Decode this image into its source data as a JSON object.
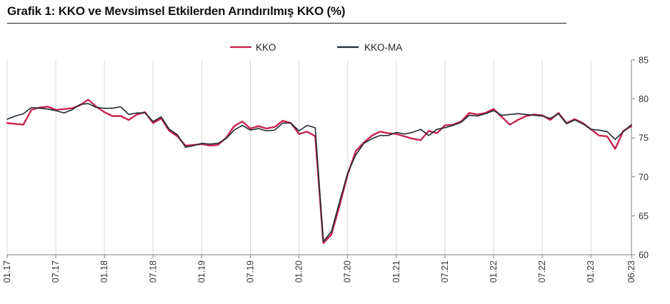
{
  "title": "Grafik 1: KKO ve Mevsimsel Etkilerden Arındırılmış KKO (%)",
  "chart_data": {
    "type": "line",
    "title": "Grafik 1: KKO ve Mevsimsel Etkilerden Arındırılmış KKO (%)",
    "xlabel": "",
    "ylabel": "",
    "ylim": [
      60,
      85
    ],
    "yticks": [
      60,
      65,
      70,
      75,
      80,
      85
    ],
    "x_tick_labels": [
      "01.17",
      "07.17",
      "01.18",
      "07.18",
      "01.19",
      "07.19",
      "01.20",
      "07.20",
      "01.21",
      "07.21",
      "01.22",
      "07.22",
      "01.23",
      "06.23"
    ],
    "x": [
      "01.17",
      "02.17",
      "03.17",
      "04.17",
      "05.17",
      "06.17",
      "07.17",
      "08.17",
      "09.17",
      "10.17",
      "11.17",
      "12.17",
      "01.18",
      "02.18",
      "03.18",
      "04.18",
      "05.18",
      "06.18",
      "07.18",
      "08.18",
      "09.18",
      "10.18",
      "11.18",
      "12.18",
      "01.19",
      "02.19",
      "03.19",
      "04.19",
      "05.19",
      "06.19",
      "07.19",
      "08.19",
      "09.19",
      "10.19",
      "11.19",
      "12.19",
      "01.20",
      "02.20",
      "03.20",
      "04.20",
      "05.20",
      "06.20",
      "07.20",
      "08.20",
      "09.20",
      "10.20",
      "11.20",
      "12.20",
      "01.21",
      "02.21",
      "03.21",
      "04.21",
      "05.21",
      "06.21",
      "07.21",
      "08.21",
      "09.21",
      "10.21",
      "11.21",
      "12.21",
      "01.22",
      "02.22",
      "03.22",
      "04.22",
      "05.22",
      "06.22",
      "07.22",
      "08.22",
      "09.22",
      "10.22",
      "11.22",
      "12.22",
      "01.23",
      "02.23",
      "03.23",
      "04.23",
      "05.23",
      "06.23"
    ],
    "grid": "vertical",
    "legend_position": "top-center",
    "series": [
      {
        "name": "KKO",
        "color": "#c8234f",
        "values": [
          76.9,
          76.8,
          76.7,
          78.6,
          78.9,
          79.0,
          78.6,
          78.7,
          78.8,
          79.2,
          79.9,
          79.0,
          78.3,
          77.8,
          77.8,
          77.3,
          78.0,
          78.3,
          76.9,
          77.5,
          75.9,
          75.2,
          74.0,
          74.1,
          74.2,
          74.0,
          74.1,
          75.0,
          76.5,
          77.1,
          76.2,
          76.5,
          76.2,
          76.4,
          77.2,
          76.9,
          75.5,
          75.8,
          75.2,
          61.5,
          62.6,
          66.3,
          70.3,
          73.3,
          74.4,
          75.3,
          75.8,
          75.6,
          75.5,
          75.2,
          74.9,
          74.7,
          75.9,
          75.6,
          76.6,
          76.7,
          77.1,
          78.2,
          78.0,
          78.2,
          78.7,
          77.7,
          76.7,
          77.3,
          77.8,
          78.0,
          77.9,
          77.3,
          78.2,
          76.9,
          77.4,
          76.9,
          76.1,
          75.3,
          75.2,
          73.6,
          75.9,
          76.5
        ]
      },
      {
        "name": "KKO-MA",
        "color": "#1f2a33",
        "values": [
          77.4,
          77.8,
          78.1,
          78.9,
          78.8,
          78.7,
          78.5,
          78.2,
          78.6,
          79.3,
          79.4,
          78.9,
          78.8,
          78.8,
          79.0,
          78.0,
          78.2,
          78.2,
          77.1,
          77.7,
          76.1,
          75.4,
          73.8,
          74.0,
          74.3,
          74.2,
          74.3,
          74.9,
          76.0,
          76.6,
          76.0,
          76.2,
          75.9,
          76.0,
          76.9,
          76.9,
          75.9,
          76.6,
          76.3,
          61.7,
          63.0,
          66.8,
          70.5,
          72.8,
          74.3,
          74.9,
          75.3,
          75.3,
          75.7,
          75.5,
          75.7,
          76.1,
          75.3,
          76.1,
          76.3,
          76.6,
          77.0,
          77.9,
          77.8,
          78.1,
          78.5,
          77.9,
          78.0,
          78.1,
          78.0,
          77.9,
          77.8,
          77.5,
          78.1,
          76.8,
          77.3,
          76.8,
          76.1,
          76.0,
          75.8,
          74.8,
          75.8,
          76.7
        ]
      }
    ]
  }
}
